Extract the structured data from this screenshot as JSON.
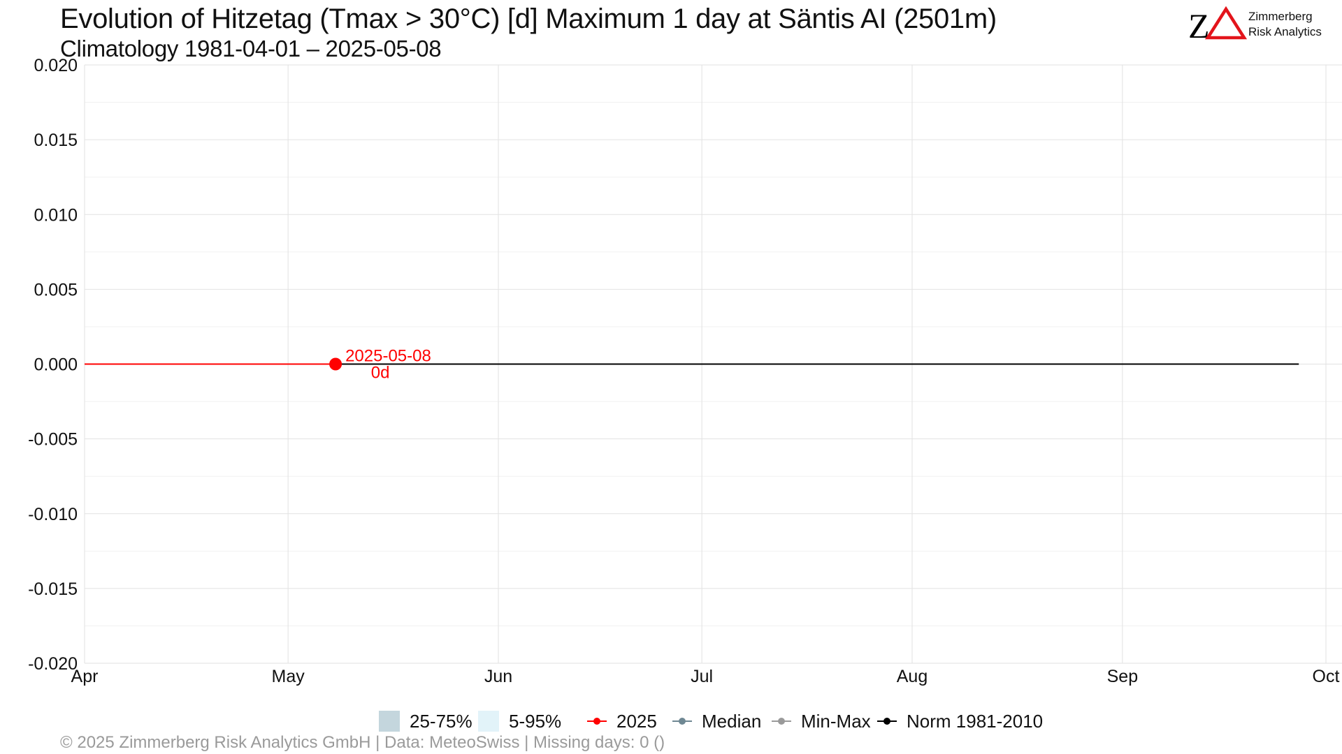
{
  "header": {
    "title": "Evolution of Hitzetag (Tmax > 30°C) [d] Maximum 1 day at Säntis  AI (2501m)",
    "subtitle": "Climatology 1981-04-01 – 2025-05-08"
  },
  "brand": {
    "mark": "ZΔ",
    "line1": "Zimmerberg",
    "line2": "Risk Analytics",
    "accent_color": "#e3141b"
  },
  "chart_data": {
    "type": "line",
    "title": "Evolution of Hitzetag (Tmax > 30°C) [d] Maximum 1 day at Säntis  AI (2501m)",
    "subtitle": "Climatology 1981-04-01 – 2025-05-08",
    "xlabel": "",
    "ylabel": "",
    "x_range": [
      "2025-04-01",
      "2025-10-01"
    ],
    "ylim": [
      -0.02,
      0.02
    ],
    "x_ticks": [
      {
        "label": "Apr",
        "date": "2025-04-01"
      },
      {
        "label": "May",
        "date": "2025-05-01"
      },
      {
        "label": "Jun",
        "date": "2025-06-01"
      },
      {
        "label": "Jul",
        "date": "2025-07-01"
      },
      {
        "label": "Aug",
        "date": "2025-08-01"
      },
      {
        "label": "Sep",
        "date": "2025-09-01"
      },
      {
        "label": "Oct",
        "date": "2025-10-01"
      }
    ],
    "y_ticks": [
      {
        "label": "0.020",
        "value": 0.02
      },
      {
        "label": "0.015",
        "value": 0.015
      },
      {
        "label": "0.010",
        "value": 0.01
      },
      {
        "label": "0.005",
        "value": 0.005
      },
      {
        "label": "0.000",
        "value": 0.0
      },
      {
        "label": "-0.005",
        "value": -0.005
      },
      {
        "label": "-0.010",
        "value": -0.01
      },
      {
        "label": "-0.015",
        "value": -0.015
      },
      {
        "label": "-0.020",
        "value": -0.02
      }
    ],
    "grid": true,
    "legend_position": "bottom",
    "series": [
      {
        "name": "Norm 1981-2010",
        "color": "#000000",
        "x": [
          "2025-04-01",
          "2025-09-27"
        ],
        "y": [
          0,
          0
        ]
      },
      {
        "name": "2025",
        "color": "#ff0000",
        "x": [
          "2025-04-01",
          "2025-05-08"
        ],
        "y": [
          0,
          0
        ]
      }
    ],
    "annotations": [
      {
        "x": "2025-05-08",
        "y": 0,
        "date_label": "2025-05-08",
        "value_label": "0d",
        "color": "#ff0000"
      }
    ]
  },
  "legend": {
    "items": [
      {
        "label": "25-75%",
        "kind": "fill",
        "color": "#c4d6dd"
      },
      {
        "label": "5-95%",
        "kind": "fill",
        "color": "#e2f3f9"
      },
      {
        "label": "2025",
        "kind": "line",
        "color": "#ff0000"
      },
      {
        "label": "Median",
        "kind": "line",
        "color": "#6f8893"
      },
      {
        "label": "Min-Max",
        "kind": "line",
        "color": "#9a9a9a"
      },
      {
        "label": "Norm 1981-2010",
        "kind": "line",
        "color": "#000000"
      }
    ]
  },
  "footer": {
    "text": "©  2025 Zimmerberg Risk Analytics GmbH | Data: MeteoSwiss | Missing days: 0 ()"
  }
}
